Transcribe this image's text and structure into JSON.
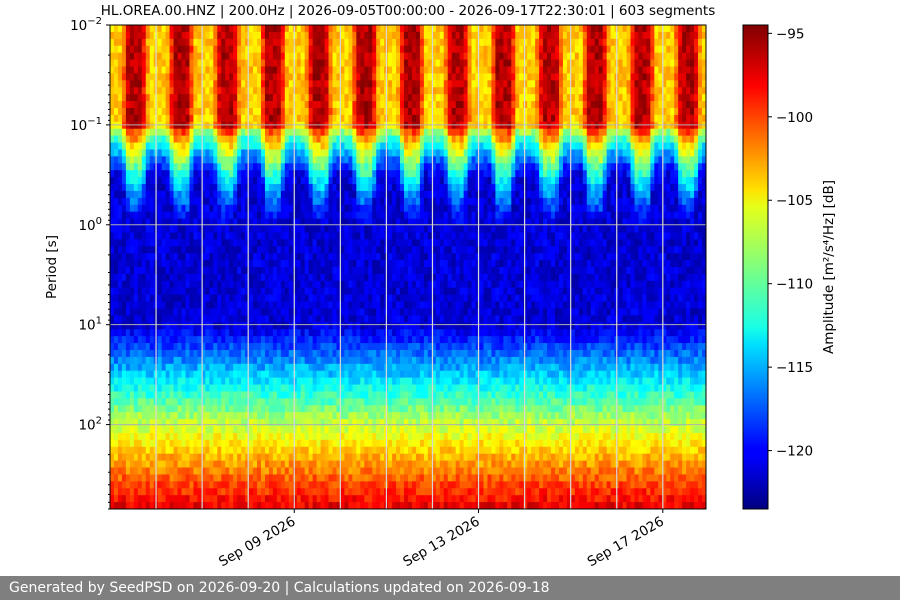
{
  "title": "HL.OREA.00.HNZ | 200.0Hz | 2026-09-05T00:00:00 - 2026-09-17T22:30:01 | 603 segments",
  "footer": "Generated by SeedPSD on 2026-09-20 | Calculations updated on 2026-09-18",
  "chart_data": {
    "type": "heatmap",
    "title": "HL.OREA.00.HNZ | 200.0Hz | 2026-09-05T00:00:00 - 2026-09-17T22:30:01 | 603 segments",
    "xlabel": "",
    "ylabel": "Period [s]",
    "x_start": "2026-09-05T00:00:00",
    "x_end": "2026-09-17T22:30:01",
    "x_ticks": [
      "Sep 09 2026",
      "Sep 13 2026",
      "Sep 17 2026"
    ],
    "y_scale": "log",
    "y_inverted": true,
    "ylim": [
      0.01,
      700
    ],
    "y_ticks": [
      {
        "value": 0.01,
        "base": "10",
        "exp": "−2"
      },
      {
        "value": 0.1,
        "base": "10",
        "exp": "−1"
      },
      {
        "value": 1,
        "base": "10",
        "exp": "0"
      },
      {
        "value": 10,
        "base": "10",
        "exp": "1"
      },
      {
        "value": 100,
        "base": "10",
        "exp": "2"
      }
    ],
    "grid": true,
    "colorbar": {
      "label": "Amplitude [m²/s⁴/Hz] [dB]",
      "colormap": "jet",
      "range": [
        -123.5,
        -94.5
      ],
      "ticks": [
        "−95",
        "−100",
        "−105",
        "−110",
        "−115",
        "−120"
      ],
      "tick_values": [
        -95,
        -100,
        -105,
        -110,
        -115,
        -120
      ]
    },
    "daily_amplitude_pattern": {
      "period_s_0.01_to_0.1_day_dB": -96,
      "period_s_0.01_to_0.1_night_dB": -104,
      "period_s_1_to_10_dB": -121,
      "period_s_100_dB": -107,
      "period_s_500_dB": -99
    }
  }
}
